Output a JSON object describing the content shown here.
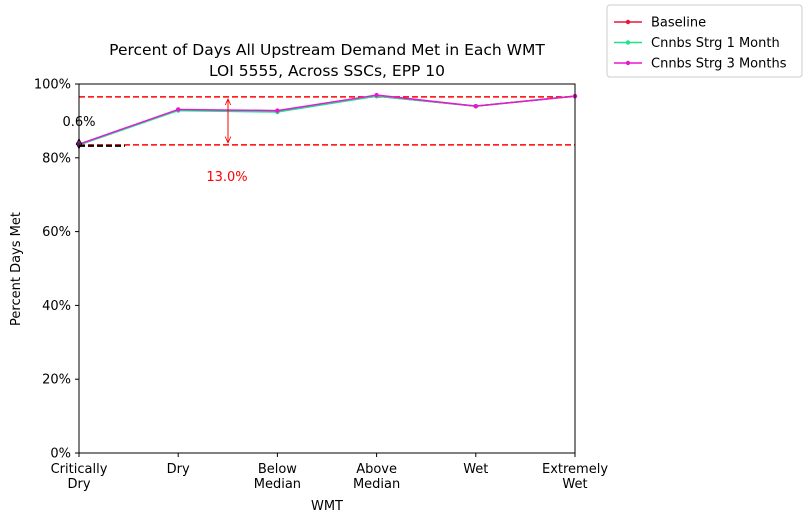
{
  "chart_data": {
    "type": "line",
    "title": "Percent of Days All Upstream Demand Met in Each WMT",
    "subtitle": "LOI 5555, Across SSCs, EPP 10",
    "x_label": "WMT",
    "y_label": "Percent Days Met",
    "categories": [
      "Critically\nDry",
      "Dry",
      "Below\nMedian",
      "Above\nMedian",
      "Wet",
      "Extremely\nWet"
    ],
    "series": [
      {
        "name": "Baseline",
        "color": "#e6193c",
        "values": [
          83.5,
          93.0,
          92.7,
          96.7,
          94.0,
          96.7
        ]
      },
      {
        "name": "Cnnbs Strg 1 Month",
        "color": "#19e68c",
        "values": [
          83.5,
          92.8,
          92.4,
          96.7,
          94.0,
          96.7
        ]
      },
      {
        "name": "Cnnbs Strg 3 Months",
        "color": "#e619d2",
        "values": [
          83.7,
          93.1,
          92.8,
          97.0,
          94.0,
          96.7
        ]
      }
    ],
    "ylim": [
      0,
      100
    ],
    "yticks": [
      {
        "value": 0,
        "label": "0%"
      },
      {
        "value": 20,
        "label": "20%"
      },
      {
        "value": 40,
        "label": "40%"
      },
      {
        "value": 60,
        "label": "60%"
      },
      {
        "value": 80,
        "label": "80%"
      },
      {
        "value": 100,
        "label": "100%"
      }
    ],
    "reference_lines": [
      96.5,
      83.5
    ],
    "annotations": [
      {
        "text": "13.0%",
        "color": "#ff0000",
        "y": [
          83.5,
          96.5
        ]
      },
      {
        "text": "0.6%",
        "color": "#000000",
        "y": [
          83.5,
          84.1
        ]
      }
    ],
    "legend": "outside upper right"
  }
}
